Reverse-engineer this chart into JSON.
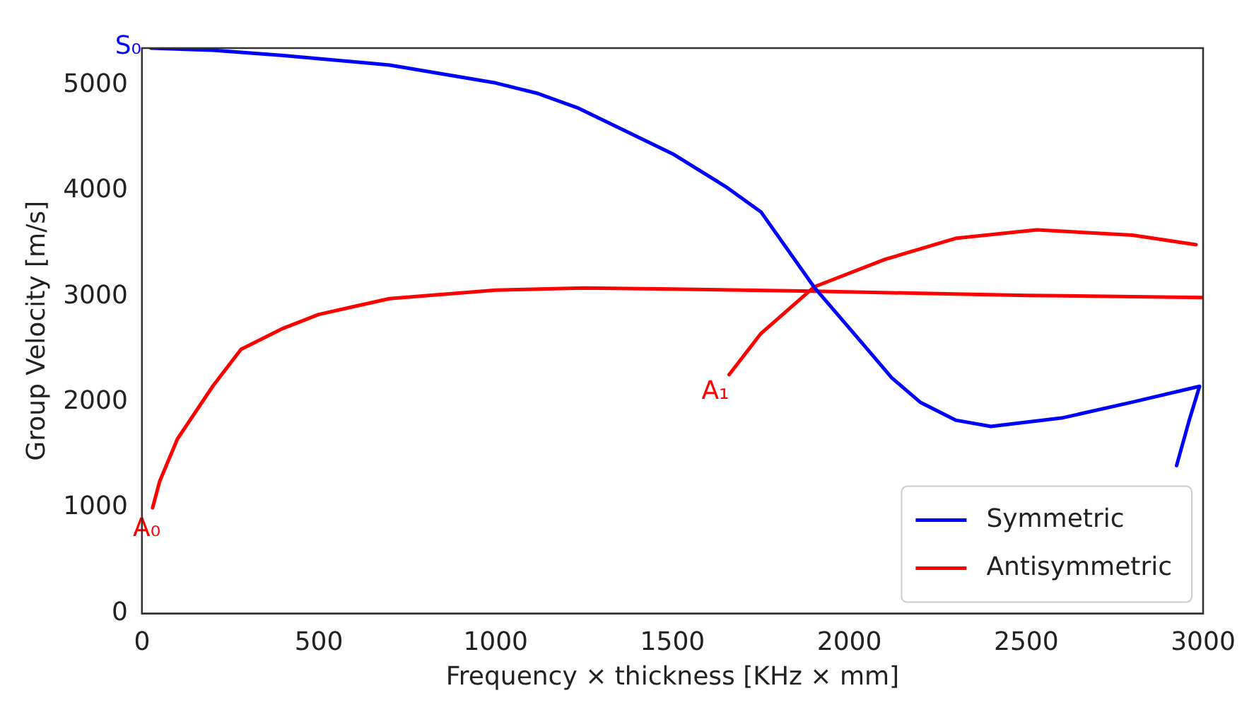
{
  "chart_data": {
    "type": "line",
    "xlabel": "Frequency × thickness [KHz × mm]",
    "ylabel": "Group Velocity [m/s]",
    "xlim": [
      0,
      3000
    ],
    "ylim": [
      0,
      5350
    ],
    "xticks": [
      0,
      500,
      1000,
      1500,
      2000,
      2500,
      3000
    ],
    "yticks": [
      0,
      1000,
      2000,
      3000,
      4000,
      5000
    ],
    "grid": false,
    "legend": "bottom right",
    "marker": "none",
    "line_style": "solid",
    "series": [
      {
        "name": "Symmetric",
        "color": "#0000ff",
        "x": [
          25,
          200,
          400,
          700,
          1000,
          1120,
          1235,
          1500,
          1650,
          1750,
          1900,
          2000,
          2120,
          2200,
          2300,
          2400,
          2600,
          2800,
          2990,
          2960,
          2925
        ],
        "values": [
          5350,
          5330,
          5280,
          5190,
          5020,
          4920,
          4780,
          4350,
          4040,
          3800,
          3090,
          2700,
          2230,
          2000,
          1830,
          1770,
          1850,
          2000,
          2150,
          1820,
          1400
        ]
      },
      {
        "name": "Antisymmetric",
        "color": "#ff0000",
        "x": [
          30,
          50,
          100,
          200,
          280,
          400,
          500,
          700,
          1000,
          1250,
          1500,
          1900,
          2200,
          2500,
          3000,
          null,
          1660,
          1750,
          1900,
          2100,
          2300,
          2530,
          2800,
          2980
        ],
        "values": [
          1000,
          1250,
          1650,
          2150,
          2500,
          2700,
          2830,
          2980,
          3060,
          3080,
          3070,
          3050,
          3030,
          3010,
          2990,
          null,
          2260,
          2650,
          3090,
          3350,
          3550,
          3630,
          3580,
          3490
        ]
      }
    ],
    "annotations": [
      {
        "text": "S₀",
        "x": 25,
        "y": 5350
      },
      {
        "text": "A₀",
        "x": 30,
        "y": 1000
      },
      {
        "text": "A₁",
        "x": 1660,
        "y": 2260
      }
    ]
  }
}
